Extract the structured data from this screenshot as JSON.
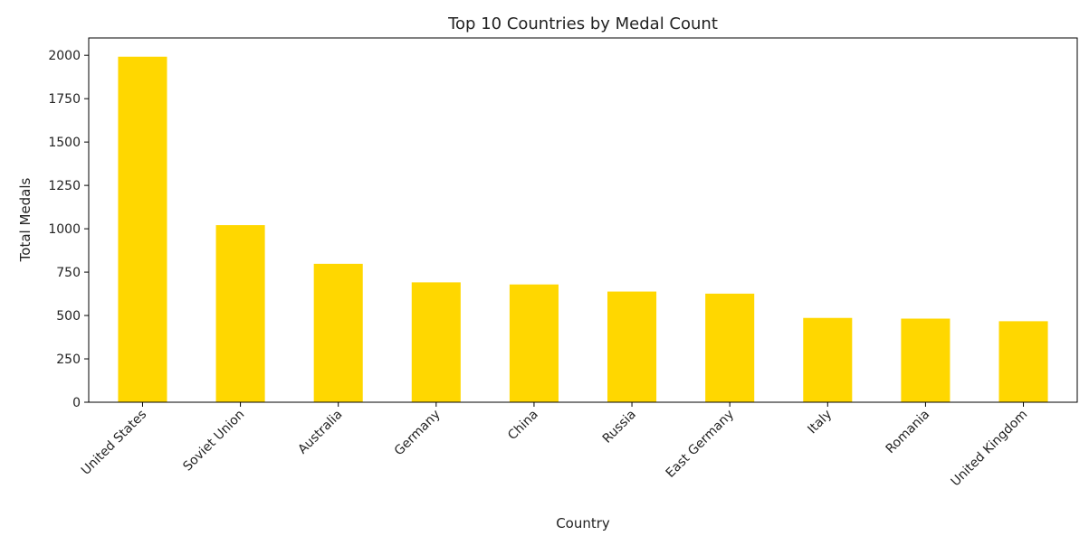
{
  "chart_data": {
    "type": "bar",
    "title": "Top 10 Countries by Medal Count",
    "xlabel": "Country",
    "ylabel": "Total Medals",
    "categories": [
      "United States",
      "Soviet Union",
      "Australia",
      "Germany",
      "China",
      "Russia",
      "East Germany",
      "Italy",
      "Romania",
      "United Kingdom"
    ],
    "values": [
      1992,
      1021,
      798,
      691,
      679,
      638,
      626,
      486,
      482,
      467
    ],
    "ylim": [
      0,
      2100
    ],
    "yticks": [
      0,
      250,
      500,
      750,
      1000,
      1250,
      1500,
      1750,
      2000
    ],
    "bar_color": "#ffd700",
    "grid": false,
    "legend": "none"
  }
}
